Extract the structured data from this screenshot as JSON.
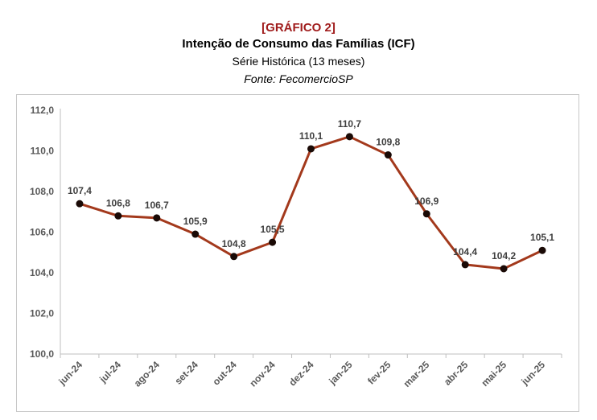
{
  "header": {
    "tag": "[GRÁFICO 2]",
    "title": "Intenção de Consumo das Famílias (ICF)",
    "subtitle": "Série Histórica (13 meses)",
    "source": "Fonte: FecomercioSP"
  },
  "colors": {
    "line": "#a3391c",
    "marker": "#1a0a06",
    "tag": "#a01c1c"
  },
  "chart_data": {
    "type": "line",
    "categories": [
      "jun-24",
      "jul-24",
      "ago-24",
      "set-24",
      "out-24",
      "nov-24",
      "dez-24",
      "jan-25",
      "fev-25",
      "mar-25",
      "abr-25",
      "mai-25",
      "jun-25"
    ],
    "values": [
      107.4,
      106.8,
      106.7,
      105.9,
      104.8,
      105.5,
      110.1,
      110.7,
      109.8,
      106.9,
      104.4,
      104.2,
      105.1
    ],
    "data_labels": [
      "107,4",
      "106,8",
      "106,7",
      "105,9",
      "104,8",
      "105,5",
      "110,1",
      "110,7",
      "109,8",
      "106,9",
      "104,4",
      "104,2",
      "105,1"
    ],
    "ylim": [
      100,
      112
    ],
    "yticks": [
      100,
      102,
      104,
      106,
      108,
      110,
      112
    ],
    "ytick_labels": [
      "100,0",
      "102,0",
      "104,0",
      "106,0",
      "108,0",
      "110,0",
      "112,0"
    ],
    "grid": false,
    "legend": "none"
  }
}
